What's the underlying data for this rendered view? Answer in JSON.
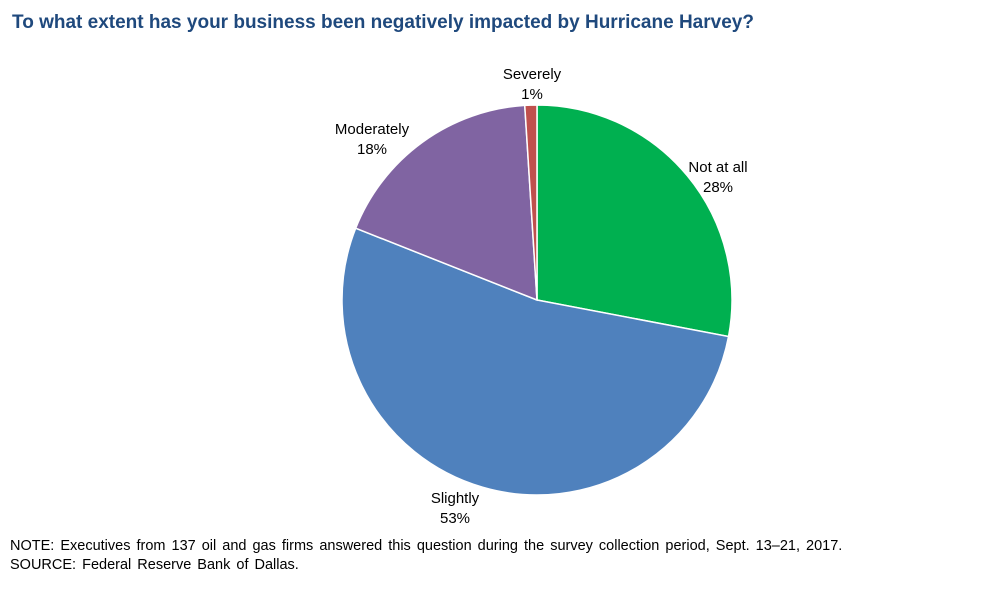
{
  "chart_data": {
    "type": "pie",
    "title": "To what extent has your business been negatively impacted by Hurricane Harvey?",
    "slices": [
      {
        "label": "Not at all",
        "value": 28,
        "value_label": "28%",
        "color": "#00b050"
      },
      {
        "label": "Slightly",
        "value": 53,
        "value_label": "53%",
        "color": "#4f81bd"
      },
      {
        "label": "Moderately",
        "value": 18,
        "value_label": "18%",
        "color": "#8064a2"
      },
      {
        "label": "Severely",
        "value": 1,
        "value_label": "1%",
        "color": "#c0504d"
      }
    ],
    "start": "12 o'clock",
    "direction": "clockwise"
  },
  "notes": {
    "note": "NOTE: Executives from 137 oil and gas firms answered this question during the survey collection period, Sept. 13–21, 2017.",
    "source": "SOURCE: Federal Reserve Bank of Dallas."
  }
}
